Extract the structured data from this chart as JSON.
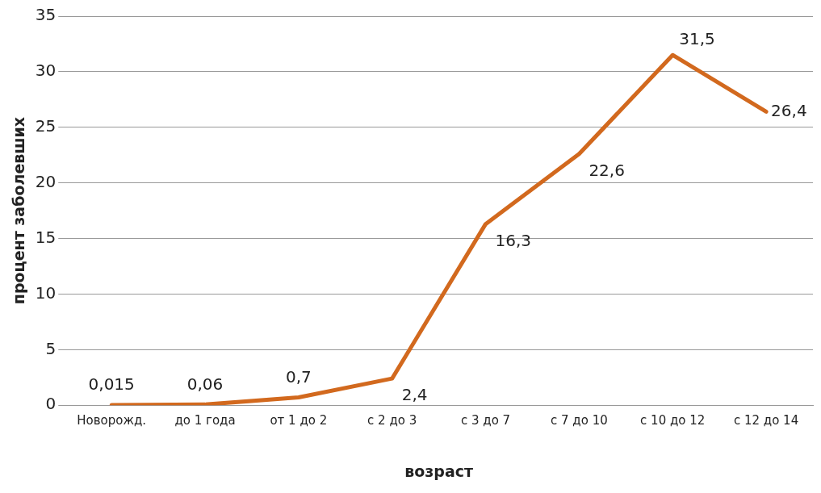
{
  "chart_data": {
    "type": "line",
    "xlabel": "возраст",
    "ylabel": "процент заболевших",
    "categories": [
      "Новорожд.",
      "до 1 года",
      "от 1 до 2",
      "с 2 до 3",
      "с 3 до 7",
      "с 7 до 10",
      "с 10 до 12",
      "с 12 до 14"
    ],
    "series": [
      {
        "color": "#d2691e",
        "values": [
          0.015,
          0.06,
          0.7,
          2.4,
          16.3,
          22.6,
          31.5,
          26.4
        ],
        "value_labels": [
          "0,015",
          "0,06",
          "0,7",
          "2,4",
          "16,3",
          "22,6",
          "31,5",
          "26,4"
        ]
      }
    ],
    "ylim": [
      0,
      35
    ],
    "yticks": [
      0,
      5,
      10,
      15,
      20,
      25,
      30,
      35
    ],
    "grid": "y",
    "legend": false,
    "marker": "none",
    "line_style": "solid"
  }
}
